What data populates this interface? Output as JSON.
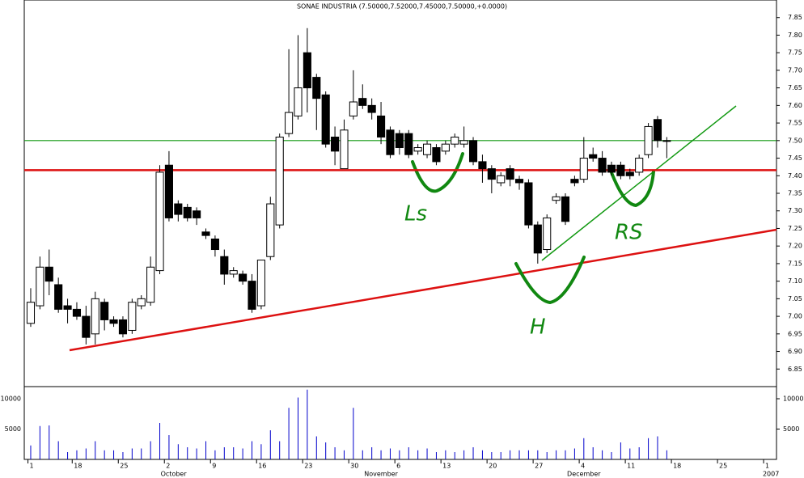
{
  "chart_data": [
    {
      "type": "candlestick",
      "title": "SONAE INDUSTRIA (7.50000,7.52000,7.45000,7.50000,+0.0000)",
      "open": [
        6.98,
        7.03,
        7.14,
        7.09,
        7.03,
        7.02,
        7.0,
        6.95,
        7.04,
        6.99,
        6.99,
        6.96,
        7.03,
        7.04,
        7.13,
        7.43,
        7.32,
        7.31,
        7.3,
        7.24,
        7.22,
        7.17,
        7.12,
        7.12,
        7.1,
        7.03,
        7.17,
        7.26,
        7.52,
        7.57,
        7.75,
        7.68,
        7.63,
        7.51,
        7.42,
        7.57,
        7.62,
        7.6,
        7.57,
        7.53,
        7.52,
        7.52,
        7.47,
        7.46,
        7.48,
        7.47,
        7.49,
        7.49,
        7.5,
        7.44,
        7.42,
        7.38,
        7.42,
        7.39,
        7.38,
        7.26,
        7.19,
        7.33,
        7.34,
        7.39,
        7.39,
        7.46,
        7.45,
        7.43,
        7.43,
        7.41,
        7.41,
        7.46,
        7.56,
        7.5
      ],
      "high": [
        7.08,
        7.17,
        7.19,
        7.11,
        7.05,
        7.04,
        7.03,
        7.07,
        7.05,
        7.0,
        7.0,
        7.05,
        7.06,
        7.17,
        7.43,
        7.47,
        7.33,
        7.32,
        7.31,
        7.25,
        7.23,
        7.19,
        7.14,
        7.13,
        7.12,
        7.16,
        7.34,
        7.52,
        7.76,
        7.8,
        7.82,
        7.69,
        7.64,
        7.54,
        7.56,
        7.7,
        7.66,
        7.62,
        7.61,
        7.54,
        7.53,
        7.53,
        7.49,
        7.5,
        7.49,
        7.5,
        7.52,
        7.54,
        7.51,
        7.46,
        7.43,
        7.41,
        7.43,
        7.4,
        7.39,
        7.27,
        7.29,
        7.35,
        7.35,
        7.4,
        7.51,
        7.48,
        7.47,
        7.44,
        7.44,
        7.42,
        7.46,
        7.55,
        7.57,
        7.51
      ],
      "low": [
        6.97,
        7.02,
        7.06,
        7.01,
        6.98,
        6.99,
        6.92,
        6.92,
        6.96,
        6.97,
        6.94,
        6.95,
        7.02,
        7.03,
        7.12,
        7.27,
        7.27,
        7.27,
        7.26,
        7.22,
        7.17,
        7.09,
        7.11,
        7.09,
        7.01,
        7.02,
        7.16,
        7.25,
        7.51,
        7.56,
        7.58,
        7.53,
        7.48,
        7.43,
        7.42,
        7.56,
        7.59,
        7.56,
        7.49,
        7.45,
        7.46,
        7.45,
        7.46,
        7.45,
        7.43,
        7.46,
        7.48,
        7.48,
        7.43,
        7.38,
        7.35,
        7.37,
        7.37,
        7.36,
        7.25,
        7.15,
        7.18,
        7.32,
        7.26,
        7.37,
        7.38,
        7.44,
        7.4,
        7.4,
        7.39,
        7.39,
        7.4,
        7.45,
        7.48,
        7.45
      ],
      "close": [
        7.04,
        7.14,
        7.1,
        7.02,
        7.02,
        7.0,
        6.94,
        7.05,
        6.99,
        6.98,
        6.95,
        7.04,
        7.05,
        7.14,
        7.41,
        7.28,
        7.29,
        7.28,
        7.28,
        7.23,
        7.19,
        7.12,
        7.13,
        7.1,
        7.02,
        7.16,
        7.32,
        7.51,
        7.58,
        7.65,
        7.65,
        7.62,
        7.49,
        7.47,
        7.53,
        7.61,
        7.6,
        7.58,
        7.51,
        7.46,
        7.48,
        7.46,
        7.48,
        7.49,
        7.44,
        7.49,
        7.51,
        7.5,
        7.44,
        7.42,
        7.39,
        7.4,
        7.39,
        7.38,
        7.26,
        7.18,
        7.28,
        7.34,
        7.27,
        7.38,
        7.45,
        7.45,
        7.41,
        7.41,
        7.4,
        7.4,
        7.45,
        7.54,
        7.5,
        7.5
      ],
      "xlim": [
        -0.7,
        80.9
      ],
      "xticks": [
        {
          "value": -0.3,
          "label": "1"
        },
        {
          "value": 4.5,
          "label": "18"
        },
        {
          "value": 9.5,
          "label": "25"
        },
        {
          "value": 14.5,
          "label": "2"
        },
        {
          "value": 19.5,
          "label": "9"
        },
        {
          "value": 24.5,
          "label": "16"
        },
        {
          "value": 29.5,
          "label": "23"
        },
        {
          "value": 34.5,
          "label": "30"
        },
        {
          "value": 39.5,
          "label": "6"
        },
        {
          "value": 44.5,
          "label": "13"
        },
        {
          "value": 49.5,
          "label": "20"
        },
        {
          "value": 54.5,
          "label": "27"
        },
        {
          "value": 59.5,
          "label": "4"
        },
        {
          "value": 64.5,
          "label": "11"
        },
        {
          "value": 69.5,
          "label": "18"
        },
        {
          "value": 74.5,
          "label": "25"
        },
        {
          "value": 79.5,
          "label": "1"
        }
      ],
      "month_labels": [
        {
          "value": 15.5,
          "label": "October"
        },
        {
          "value": 38,
          "label": "November"
        },
        {
          "value": 60,
          "label": "December"
        },
        {
          "value": 80.3,
          "label": "2007"
        }
      ],
      "ylim": [
        6.8,
        7.9
      ],
      "yticks": [
        6.85,
        {
          "value": 6.9,
          "label": "6.90"
        },
        6.95,
        {
          "value": 7,
          "label": "7.00"
        },
        7.05,
        {
          "value": 7.1,
          "label": "7.10"
        },
        7.15,
        {
          "value": 7.2,
          "label": "7.20"
        },
        7.25,
        {
          "value": 7.3,
          "label": "7.30"
        },
        7.35,
        {
          "value": 7.4,
          "label": "7.40"
        },
        7.45,
        {
          "value": 7.5,
          "label": "7.50"
        },
        7.55,
        {
          "value": 7.6,
          "label": "7.60"
        },
        7.65,
        {
          "value": 7.7,
          "label": "7.70"
        },
        7.75,
        {
          "value": 7.8,
          "label": "7.80"
        },
        7.85
      ],
      "levels": [
        {
          "value": 7.5,
          "color": "#119911"
        },
        {
          "value": 7.416,
          "color": "#dd1111"
        }
      ],
      "up_color": "#ffffff",
      "down_color": "#000000",
      "annotations": [
        "Ls",
        "H",
        "RS"
      ]
    },
    {
      "type": "bar",
      "values": [
        2300,
        5500,
        5600,
        3000,
        1200,
        1500,
        1800,
        3000,
        1500,
        1500,
        1200,
        1800,
        1800,
        3000,
        6000,
        4000,
        2500,
        2000,
        1800,
        3000,
        1500,
        2000,
        2000,
        1800,
        3000,
        2500,
        4800,
        3000,
        8500,
        10200,
        11500,
        3800,
        2800,
        2000,
        1500,
        8500,
        1500,
        2000,
        1500,
        1800,
        1500,
        2000,
        1500,
        1800,
        1200,
        1500,
        1200,
        1500,
        2000,
        1500,
        1200,
        1200,
        1500,
        1500,
        1500,
        1500,
        1200,
        1500,
        1500,
        1800,
        3500,
        2000,
        1500,
        1200,
        2800,
        1800,
        2000,
        3500,
        3800,
        1500
      ],
      "color": "#0000cc",
      "ylim": [
        0,
        12000
      ],
      "yticks": [
        5000,
        10000
      ]
    }
  ]
}
